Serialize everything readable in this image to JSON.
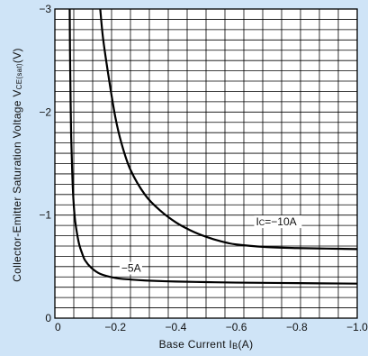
{
  "chart_data": {
    "type": "line",
    "xlabel": "Base Current I",
    "xlabel_sub": "B",
    "xlabel_unit": "(A)",
    "ylabel": "Collector-Emitter Saturation Voltage V",
    "ylabel_sub": "CE(sat)",
    "ylabel_unit": "(V)",
    "xlim": [
      0,
      -1.0
    ],
    "ylim": [
      0,
      -3
    ],
    "x_ticks": [
      0,
      -0.2,
      -0.4,
      -0.6,
      -0.8,
      -1.0
    ],
    "x_tick_labels": [
      "0",
      "−0.2",
      "−0.4",
      "−0.6",
      "−0.8",
      "−1.0"
    ],
    "y_ticks": [
      0,
      -1,
      -2,
      -3
    ],
    "y_tick_labels": [
      "0",
      "−1",
      "−2",
      "−3"
    ],
    "grid": true,
    "colors": {
      "background": "#cfe4f7",
      "plot": "#ffffff",
      "line": "#000000"
    },
    "series": [
      {
        "name": "IC=−10A",
        "label_main": "I",
        "label_sub": "C",
        "label_rest": "=−10A",
        "label_at": [
          -0.665,
          -0.9
        ],
        "x": [
          -0.15,
          -0.16,
          -0.18,
          -0.2,
          -0.22,
          -0.25,
          -0.3,
          -0.35,
          -0.4,
          -0.45,
          -0.5,
          -0.55,
          -0.6,
          -0.7,
          -0.8,
          -0.9,
          -1.0
        ],
        "y": [
          -3.0,
          -2.7,
          -2.3,
          -1.95,
          -1.7,
          -1.44,
          -1.19,
          -1.04,
          -0.93,
          -0.85,
          -0.79,
          -0.745,
          -0.715,
          -0.69,
          -0.68,
          -0.675,
          -0.67
        ]
      },
      {
        "name": "−5A",
        "label_main": "−5A",
        "label_sub": "",
        "label_rest": "",
        "label_at": [
          -0.22,
          -0.45
        ],
        "x": [
          -0.049,
          -0.05,
          -0.052,
          -0.054,
          -0.057,
          -0.06,
          -0.065,
          -0.07,
          -0.08,
          -0.09,
          -0.1,
          -0.12,
          -0.15,
          -0.2,
          -0.25,
          -0.3,
          -0.4,
          -0.5,
          -0.6,
          -0.8,
          -1.0
        ],
        "y": [
          -3.0,
          -2.6,
          -2.1,
          -1.75,
          -1.45,
          -1.22,
          -1.0,
          -0.88,
          -0.72,
          -0.63,
          -0.56,
          -0.49,
          -0.43,
          -0.39,
          -0.375,
          -0.365,
          -0.355,
          -0.35,
          -0.345,
          -0.34,
          -0.335
        ]
      }
    ]
  }
}
